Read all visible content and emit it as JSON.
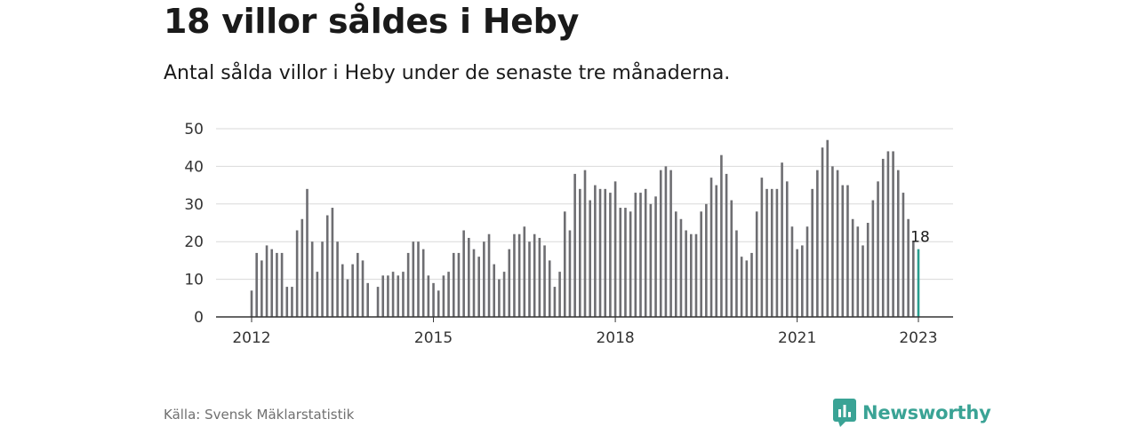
{
  "title": "18 villor såldes i Heby",
  "subtitle": "Antal sålda villor i Heby under de senaste tre månaderna.",
  "source": "Källa: Svensk Mäklarstatistik",
  "brand": {
    "name": "Newsworthy",
    "color": "#3aa395"
  },
  "colors": {
    "bar": "#6e6e72",
    "highlight": "#2a9d8f",
    "grid": "#d9d9d9",
    "axis": "#333333"
  },
  "chart_data": {
    "type": "bar",
    "x_start": "2012-01",
    "x_end": "2023-01",
    "ylim": [
      0,
      50
    ],
    "yticks": [
      0,
      10,
      20,
      30,
      40,
      50
    ],
    "xticks": [
      "2012",
      "2015",
      "2018",
      "2021",
      "2023"
    ],
    "grid": true,
    "highlight_label": "18",
    "values": [
      7,
      17,
      15,
      19,
      18,
      17,
      17,
      8,
      8,
      23,
      26,
      34,
      20,
      12,
      20,
      27,
      29,
      20,
      14,
      10,
      14,
      17,
      15,
      9,
      null,
      8,
      11,
      11,
      12,
      11,
      12,
      17,
      20,
      20,
      18,
      11,
      9,
      7,
      11,
      12,
      17,
      17,
      23,
      21,
      18,
      16,
      20,
      22,
      14,
      10,
      12,
      18,
      22,
      22,
      24,
      20,
      22,
      21,
      19,
      15,
      8,
      12,
      28,
      23,
      38,
      34,
      39,
      31,
      35,
      34,
      34,
      33,
      36,
      29,
      29,
      28,
      33,
      33,
      34,
      30,
      32,
      39,
      40,
      39,
      28,
      26,
      23,
      22,
      22,
      28,
      30,
      37,
      35,
      43,
      38,
      31,
      23,
      16,
      15,
      17,
      28,
      37,
      34,
      34,
      34,
      41,
      36,
      24,
      18,
      19,
      24,
      34,
      39,
      45,
      47,
      40,
      39,
      35,
      35,
      26,
      24,
      19,
      25,
      31,
      36,
      42,
      44,
      44,
      39,
      33,
      26,
      20,
      18
    ]
  }
}
